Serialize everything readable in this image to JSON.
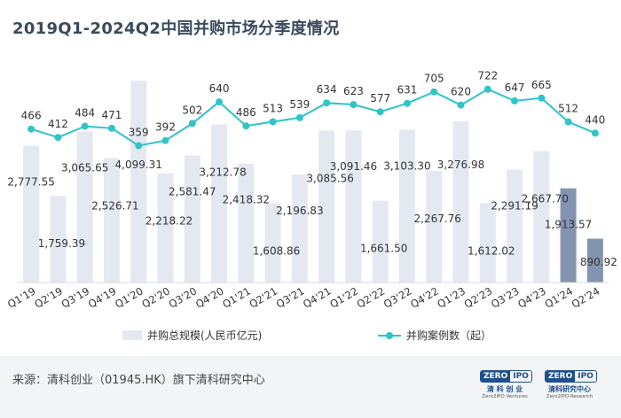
{
  "title": "2019Q1-2024Q2中国并购市场分季度情况",
  "chart_data": {
    "type": "bar+line",
    "categories": [
      "Q1'19",
      "Q2'19",
      "Q3'19",
      "Q4'19",
      "Q1'20",
      "Q2'20",
      "Q3'20",
      "Q4'20",
      "Q1'21",
      "Q2'21",
      "Q3'21",
      "Q4'21",
      "Q1'22",
      "Q2'22",
      "Q3'22",
      "Q4'22",
      "Q1'23",
      "Q2'23",
      "Q3'23",
      "Q4'23",
      "Q1'24",
      "Q2'24"
    ],
    "bar_series": {
      "name": "并购总规模(人民币亿元)",
      "values": [
        2777.55,
        1759.39,
        3065.65,
        2526.71,
        4099.31,
        2218.22,
        2581.47,
        3212.78,
        2418.32,
        1608.86,
        2196.83,
        3085.56,
        3091.46,
        1661.5,
        3103.3,
        2267.76,
        3276.98,
        1612.02,
        2291.19,
        2667.7,
        1913.57,
        890.92
      ],
      "labels": [
        "2,777.55",
        "1,759.39",
        "3,065.65",
        "2,526.71",
        "4,099.31",
        "2,218.22",
        "2,581.47",
        "3,212.78",
        "2,418.32",
        "1,608.86",
        "2,196.83",
        "3,085.56",
        "3,091.46",
        "1,661.50",
        "3,103.30",
        "2,267.76",
        "3,276.98",
        "1,612.02",
        "2,291.19",
        "2,667.70",
        "1,913.57",
        "890.92"
      ],
      "color": "#e4e8f1",
      "highlight_color": "#8394b0",
      "highlight_indices": [
        20,
        21
      ]
    },
    "line_series": {
      "name": "并购案例数（起）",
      "values": [
        466,
        412,
        484,
        471,
        359,
        392,
        502,
        640,
        486,
        513,
        539,
        634,
        623,
        577,
        631,
        705,
        620,
        722,
        647,
        665,
        512,
        440
      ],
      "color": "#2ec4c8"
    },
    "bar_ylim": [
      0,
      4300
    ],
    "line_ylim": [
      -520,
      840
    ],
    "grid": false,
    "legend_position": "bottom"
  },
  "legend": {
    "bar_label": "并购总规模(人民币亿元)",
    "line_label": "并购案例数（起）"
  },
  "footer": {
    "source": "来源：清科创业（01945.HK）旗下清科研究中心",
    "logo_left": {
      "badge_left": "ZERO",
      "badge_right": "IPO",
      "cn": "清 科 创 业",
      "en": "Zero2IPO Ventures"
    },
    "logo_right": {
      "badge_left": "ZERO",
      "badge_right": "IPO",
      "cn": "清科研究中心",
      "en": "Zero2IPO Research"
    }
  }
}
